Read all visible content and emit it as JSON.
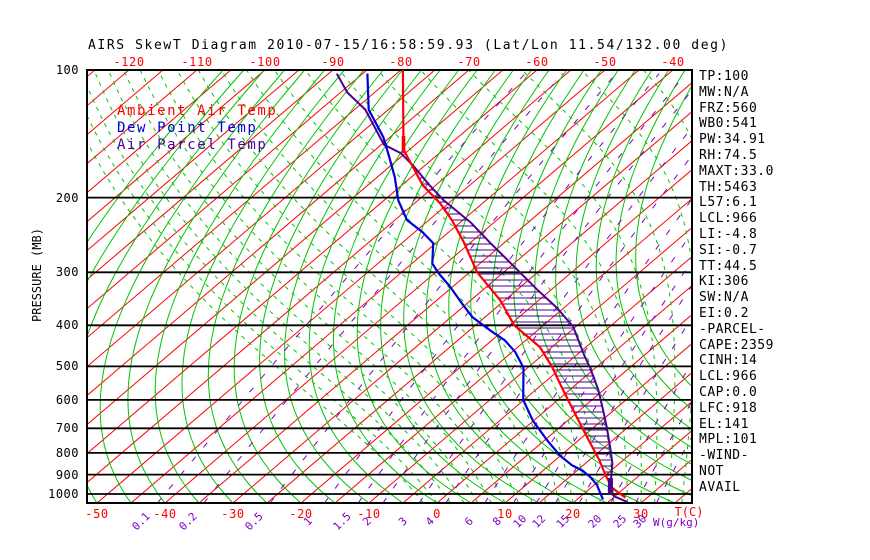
{
  "title": "AIRS SkewT Diagram 2010-07-15/16:58:59.93 (Lat/Lon 11.54/132.00 deg)",
  "legend": {
    "ambient": "Ambient Air Temp",
    "dew": "Dew Point Temp",
    "parcel": "Air Parcel Temp"
  },
  "axes": {
    "pressure_label": "PRESSURE (MB)",
    "pressure_ticks": [
      100,
      200,
      300,
      400,
      500,
      600,
      700,
      800,
      900,
      1000
    ],
    "top_temp_ticks": [
      -120,
      -110,
      -100,
      -90,
      -80,
      -70,
      -60,
      -50,
      -40
    ],
    "bottom_temp_ticks": [
      -50,
      -40,
      -30,
      -20,
      -10,
      0,
      10,
      20,
      30
    ],
    "mixing_ratio_ticks": [
      0.1,
      0.2,
      0.5,
      1,
      1.5,
      2,
      3,
      4,
      6,
      8,
      10,
      12,
      15,
      20,
      25,
      30
    ],
    "temp_unit_label": "T(C)",
    "mixing_unit_label": "W(g/kg)"
  },
  "stats": [
    "TP:100",
    "MW:N/A",
    "FRZ:560",
    "WB0:541",
    "PW:34.91",
    "RH:74.5",
    "MAXT:33.0",
    "TH:5463",
    "L57:6.1",
    "LCL:966",
    "LI:-4.8",
    "SI:-0.7",
    "TT:44.5",
    "KI:306",
    "SW:N/A",
    "EI:0.2",
    "-PARCEL-",
    "CAPE:2359",
    "CINH:14",
    "LCL:966",
    "CAP:0.0",
    "LFC:918",
    "EL:141",
    "MPL:101",
    "-WIND-",
    "NOT",
    "AVAIL"
  ],
  "colors": {
    "ambient": "#ff0000",
    "dew": "#0000dd",
    "parcel": "#4b0096",
    "isotherm": "#ff0000",
    "adiabat": "#00c400",
    "moist_adiabat": "#00c400",
    "mixing": "#7d00c8",
    "axis": "#000000",
    "background": "#ffffff"
  },
  "chart_data": {
    "type": "line",
    "title": "AIRS SkewT Diagram 2010-07-15/16:58:59.93 (Lat/Lon 11.54/132.00 deg)",
    "xlabel": "T(C)",
    "ylabel": "PRESSURE (MB)",
    "y_scale": "log",
    "y_range_mb": [
      100,
      1050
    ],
    "x_top_ticks_c": [
      -120,
      -110,
      -100,
      -90,
      -80,
      -70,
      -60,
      -50,
      -40
    ],
    "x_bottom_ticks_c": [
      -50,
      -40,
      -30,
      -20,
      -10,
      0,
      10,
      20,
      30
    ],
    "mixing_ratio_lines_gkg": [
      0.1,
      0.2,
      0.5,
      1,
      1.5,
      2,
      3,
      4,
      6,
      8,
      10,
      12,
      15,
      20,
      25,
      30
    ],
    "grid": {
      "isotherm_step_c": 5,
      "isotherm_range_c": [
        -125,
        35
      ],
      "adiabat_step_c": 5,
      "moist_adiabat_step_c": 2
    },
    "cape_hatch_between": [
      "Ambient Air Temp",
      "Air Parcel Temp"
    ],
    "series": [
      {
        "name": "Ambient Air Temp",
        "color": "#ff0000",
        "points_p_t": [
          [
            100,
            -79.7
          ],
          [
            154,
            -65.9
          ],
          [
            169,
            -61.6
          ],
          [
            187,
            -56.9
          ],
          [
            206,
            -51.3
          ],
          [
            226,
            -46.6
          ],
          [
            255,
            -41.0
          ],
          [
            300,
            -33.9
          ],
          [
            349,
            -25.7
          ],
          [
            400,
            -19.3
          ],
          [
            450,
            -11.8
          ],
          [
            502,
            -6.5
          ],
          [
            568,
            -1.0
          ],
          [
            634,
            4.0
          ],
          [
            706,
            8.9
          ],
          [
            770,
            12.9
          ],
          [
            834,
            16.6
          ],
          [
            897,
            19.7
          ],
          [
            966,
            23.1
          ],
          [
            993,
            24.9
          ],
          [
            1020,
            26.8
          ]
        ]
      },
      {
        "name": "Dew Point Temp",
        "color": "#0000dd",
        "points_p_t": [
          [
            102,
            -84.3
          ],
          [
            124,
            -77.9
          ],
          [
            144,
            -71.0
          ],
          [
            160,
            -66.8
          ],
          [
            179,
            -62.4
          ],
          [
            203,
            -57.9
          ],
          [
            226,
            -53.2
          ],
          [
            241,
            -48.9
          ],
          [
            256,
            -45.4
          ],
          [
            286,
            -42.0
          ],
          [
            301,
            -39.5
          ],
          [
            325,
            -35.3
          ],
          [
            355,
            -30.8
          ],
          [
            383,
            -26.8
          ],
          [
            411,
            -22.0
          ],
          [
            434,
            -18.1
          ],
          [
            462,
            -14.6
          ],
          [
            504,
            -10.6
          ],
          [
            600,
            -5.1
          ],
          [
            670,
            -0.2
          ],
          [
            746,
            5.3
          ],
          [
            810,
            9.8
          ],
          [
            855,
            13.3
          ],
          [
            878,
            15.6
          ],
          [
            911,
            18.0
          ],
          [
            950,
            20.3
          ],
          [
            1030,
            23.8
          ]
        ]
      },
      {
        "name": "Air Parcel Temp",
        "color": "#4b0096",
        "points_p_t": [
          [
            102,
            -88.8
          ],
          [
            113,
            -84.0
          ],
          [
            124,
            -78.4
          ],
          [
            137,
            -73.8
          ],
          [
            150,
            -69.6
          ],
          [
            157,
            -65.7
          ],
          [
            169,
            -61.4
          ],
          [
            187,
            -55.9
          ],
          [
            203,
            -51.2
          ],
          [
            229,
            -43.4
          ],
          [
            255,
            -37.2
          ],
          [
            292,
            -29.2
          ],
          [
            330,
            -22.0
          ],
          [
            364,
            -16.0
          ],
          [
            403,
            -10.4
          ],
          [
            471,
            -3.8
          ],
          [
            504,
            -0.8
          ],
          [
            568,
            4.2
          ],
          [
            634,
            8.4
          ],
          [
            696,
            11.9
          ],
          [
            777,
            15.9
          ],
          [
            848,
            19.0
          ],
          [
            911,
            21.1
          ],
          [
            992,
            23.6
          ],
          [
            1015,
            25.1
          ],
          [
            1044,
            27.8
          ]
        ]
      }
    ]
  }
}
